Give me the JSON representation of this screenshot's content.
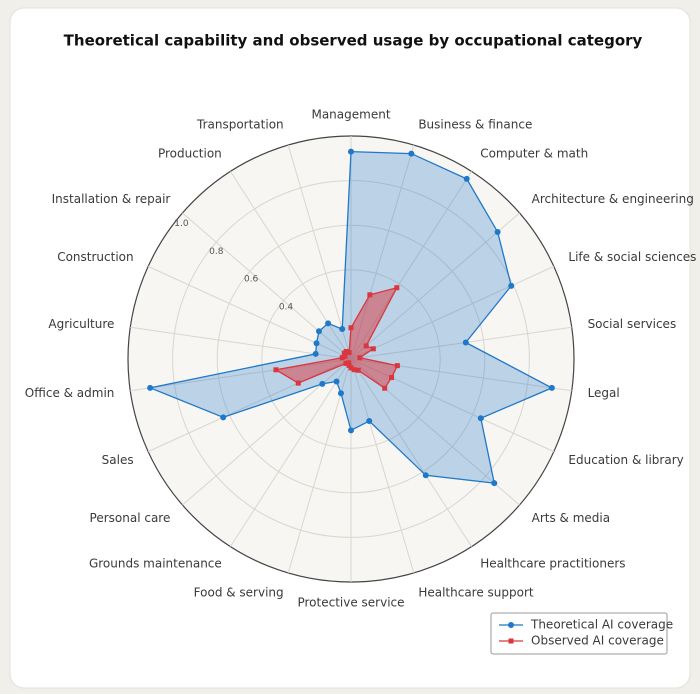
{
  "chart_data": {
    "type": "radar",
    "title": "Theoretical capability and observed usage by occupational category",
    "categories": [
      "Management",
      "Business & finance",
      "Computer & math",
      "Architecture & engineering",
      "Life & social sciences",
      "Social services",
      "Legal",
      "Education & library",
      "Arts & media",
      "Healthcare practitioners",
      "Healthcare support",
      "Protective service",
      "Food & serving",
      "Grounds maintenance",
      "Personal care",
      "Sales",
      "Office & admin",
      "Agriculture",
      "Construction",
      "Installation & repair",
      "Production",
      "Transportation"
    ],
    "series": [
      {
        "name": "Theoretical AI coverage",
        "color": "#1f78c8",
        "values": [
          0.93,
          0.96,
          0.96,
          0.87,
          0.79,
          0.52,
          0.91,
          0.64,
          0.85,
          0.62,
          0.29,
          0.32,
          0.16,
          0.12,
          0.17,
          0.63,
          0.91,
          0.16,
          0.17,
          0.19,
          0.19,
          0.14
        ]
      },
      {
        "name": "Observed AI coverage",
        "color": "#d9363e",
        "values": [
          0.14,
          0.3,
          0.38,
          0.09,
          0.11,
          0.04,
          0.21,
          0.2,
          0.2,
          0.06,
          0.05,
          0.04,
          0.03,
          0.02,
          0.03,
          0.26,
          0.34,
          0.04,
          0.03,
          0.04,
          0.04,
          0.03
        ]
      }
    ],
    "ylim": [
      0,
      1
    ],
    "yticks": [
      0.4,
      0.6,
      0.8,
      {
        "value": 1,
        "label": "1.0"
      }
    ],
    "grid": true,
    "legend": "lower right"
  }
}
